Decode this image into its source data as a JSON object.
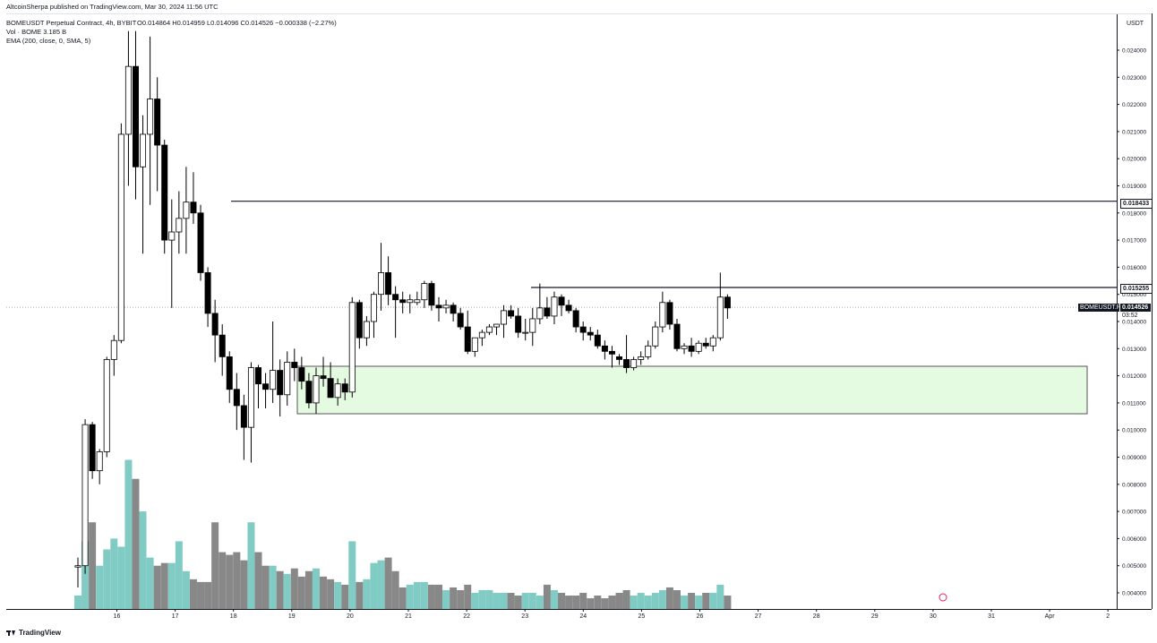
{
  "publish_info": "AltcoinSherpa published on TradingView.com, Mar 30, 2024 11:56 UTC",
  "header": {
    "symbol": "BOMEUSDT Perpetual Contract, 4h, BYBIT",
    "ohlc": "O0.014864  H0.014959  L0.014096  C0.014526  −0.000338 (−2.27%)",
    "volume": "Vol · BOME  3.185 B",
    "indicator": "EMA (200, close, 0, SMA, 5)"
  },
  "currency": "USDT",
  "price_labels": {
    "resistance_high": "0.018433",
    "resistance_mid": "0.015255",
    "symbol_tag": "BOMEUSDT.P",
    "last_price": "0.014526",
    "countdown": "03:52"
  },
  "brand": "TradingView",
  "colors": {
    "up_fill": "#ffffff",
    "down_fill": "#000000",
    "volume_up": "#80cbc4",
    "volume_down": "#888888",
    "support_zone": "#e4fbe2",
    "support_zone_border": "#2f2f2f"
  },
  "chart_data": {
    "type": "candlestick",
    "timeframe": "4h",
    "y_axis_ticks": [
      "0.024000",
      "0.023000",
      "0.022000",
      "0.021000",
      "0.020000",
      "0.019000",
      "0.018000",
      "0.017000",
      "0.016000",
      "0.015000",
      "0.014000",
      "0.013000",
      "0.012000",
      "0.011000",
      "0.010000",
      "0.009000",
      "0.008000",
      "0.007000",
      "0.006000",
      "0.005000",
      "0.004000"
    ],
    "ylim": [
      0.0034,
      0.0246
    ],
    "x_axis_labels": [
      "16",
      "17",
      "18",
      "19",
      "20",
      "21",
      "22",
      "23",
      "24",
      "25",
      "26",
      "27",
      "28",
      "29",
      "30",
      "31",
      "Apr",
      "2"
    ],
    "horizontal_lines": [
      0.018433,
      0.015255
    ],
    "support_zone": [
      0.0106,
      0.01235
    ],
    "last_price": 0.014526,
    "candles": [
      {
        "o": 0.00495,
        "h": 0.0053,
        "l": 0.0042,
        "c": 0.005
      },
      {
        "o": 0.005,
        "h": 0.0104,
        "l": 0.0047,
        "c": 0.0102
      },
      {
        "o": 0.0102,
        "h": 0.0103,
        "l": 0.0082,
        "c": 0.0085
      },
      {
        "o": 0.0085,
        "h": 0.0093,
        "l": 0.008,
        "c": 0.0092
      },
      {
        "o": 0.0092,
        "h": 0.0127,
        "l": 0.009,
        "c": 0.0126
      },
      {
        "o": 0.0126,
        "h": 0.0135,
        "l": 0.012,
        "c": 0.0133
      },
      {
        "o": 0.0133,
        "h": 0.0213,
        "l": 0.0132,
        "c": 0.0209
      },
      {
        "o": 0.0209,
        "h": 0.0247,
        "l": 0.019,
        "c": 0.0234
      },
      {
        "o": 0.0234,
        "h": 0.0247,
        "l": 0.0185,
        "c": 0.0197
      },
      {
        "o": 0.0197,
        "h": 0.0216,
        "l": 0.0165,
        "c": 0.0209
      },
      {
        "o": 0.0209,
        "h": 0.0245,
        "l": 0.0183,
        "c": 0.0222
      },
      {
        "o": 0.0222,
        "h": 0.023,
        "l": 0.0188,
        "c": 0.0205
      },
      {
        "o": 0.0205,
        "h": 0.0207,
        "l": 0.0165,
        "c": 0.017
      },
      {
        "o": 0.017,
        "h": 0.0185,
        "l": 0.0145,
        "c": 0.0173
      },
      {
        "o": 0.0173,
        "h": 0.0188,
        "l": 0.0165,
        "c": 0.0178
      },
      {
        "o": 0.0178,
        "h": 0.0197,
        "l": 0.0165,
        "c": 0.0184
      },
      {
        "o": 0.0184,
        "h": 0.0195,
        "l": 0.0176,
        "c": 0.018
      },
      {
        "o": 0.018,
        "h": 0.0183,
        "l": 0.0155,
        "c": 0.0158
      },
      {
        "o": 0.0158,
        "h": 0.016,
        "l": 0.0138,
        "c": 0.0143
      },
      {
        "o": 0.0143,
        "h": 0.0148,
        "l": 0.0125,
        "c": 0.0135
      },
      {
        "o": 0.0135,
        "h": 0.0139,
        "l": 0.012,
        "c": 0.0127
      },
      {
        "o": 0.0127,
        "h": 0.0129,
        "l": 0.011,
        "c": 0.0115
      },
      {
        "o": 0.0115,
        "h": 0.0121,
        "l": 0.01,
        "c": 0.0109
      },
      {
        "o": 0.0109,
        "h": 0.0113,
        "l": 0.0089,
        "c": 0.0101
      },
      {
        "o": 0.0101,
        "h": 0.0125,
        "l": 0.0088,
        "c": 0.0123
      },
      {
        "o": 0.0123,
        "h": 0.0124,
        "l": 0.0108,
        "c": 0.0117
      },
      {
        "o": 0.0117,
        "h": 0.0121,
        "l": 0.0108,
        "c": 0.0115
      },
      {
        "o": 0.0115,
        "h": 0.014,
        "l": 0.011,
        "c": 0.0122
      },
      {
        "o": 0.0122,
        "h": 0.0126,
        "l": 0.0105,
        "c": 0.0113
      },
      {
        "o": 0.0113,
        "h": 0.0129,
        "l": 0.0109,
        "c": 0.0125
      },
      {
        "o": 0.0125,
        "h": 0.013,
        "l": 0.0118,
        "c": 0.0123
      },
      {
        "o": 0.0123,
        "h": 0.0127,
        "l": 0.0115,
        "c": 0.0118
      },
      {
        "o": 0.0118,
        "h": 0.0121,
        "l": 0.0108,
        "c": 0.011
      },
      {
        "o": 0.011,
        "h": 0.0123,
        "l": 0.0106,
        "c": 0.012
      },
      {
        "o": 0.012,
        "h": 0.0127,
        "l": 0.0116,
        "c": 0.0119
      },
      {
        "o": 0.0119,
        "h": 0.0125,
        "l": 0.0113,
        "c": 0.0112
      },
      {
        "o": 0.0112,
        "h": 0.0119,
        "l": 0.0109,
        "c": 0.0117
      },
      {
        "o": 0.0117,
        "h": 0.0119,
        "l": 0.0111,
        "c": 0.0114
      },
      {
        "o": 0.0114,
        "h": 0.0149,
        "l": 0.0112,
        "c": 0.0147
      },
      {
        "o": 0.0147,
        "h": 0.0148,
        "l": 0.013,
        "c": 0.0134
      },
      {
        "o": 0.0134,
        "h": 0.0142,
        "l": 0.0131,
        "c": 0.014
      },
      {
        "o": 0.014,
        "h": 0.0151,
        "l": 0.0134,
        "c": 0.015
      },
      {
        "o": 0.015,
        "h": 0.0169,
        "l": 0.0144,
        "c": 0.0158
      },
      {
        "o": 0.0158,
        "h": 0.0164,
        "l": 0.0146,
        "c": 0.015
      },
      {
        "o": 0.015,
        "h": 0.0153,
        "l": 0.0134,
        "c": 0.0148
      },
      {
        "o": 0.0148,
        "h": 0.0151,
        "l": 0.0143,
        "c": 0.0147
      },
      {
        "o": 0.0147,
        "h": 0.015,
        "l": 0.0143,
        "c": 0.0148
      },
      {
        "o": 0.0147,
        "h": 0.0151,
        "l": 0.0146,
        "c": 0.0148
      },
      {
        "o": 0.0148,
        "h": 0.0155,
        "l": 0.0145,
        "c": 0.0154
      },
      {
        "o": 0.0154,
        "h": 0.0155,
        "l": 0.0144,
        "c": 0.0146
      },
      {
        "o": 0.0146,
        "h": 0.0149,
        "l": 0.014,
        "c": 0.0145
      },
      {
        "o": 0.0145,
        "h": 0.0148,
        "l": 0.0143,
        "c": 0.0146
      },
      {
        "o": 0.0146,
        "h": 0.0147,
        "l": 0.014,
        "c": 0.0143
      },
      {
        "o": 0.0143,
        "h": 0.0145,
        "l": 0.0137,
        "c": 0.0138
      },
      {
        "o": 0.0138,
        "h": 0.0144,
        "l": 0.0128,
        "c": 0.0129
      },
      {
        "o": 0.0129,
        "h": 0.0134,
        "l": 0.0127,
        "c": 0.0134
      },
      {
        "o": 0.0134,
        "h": 0.0137,
        "l": 0.0131,
        "c": 0.0136
      },
      {
        "o": 0.0136,
        "h": 0.0139,
        "l": 0.0135,
        "c": 0.0138
      },
      {
        "o": 0.0138,
        "h": 0.0139,
        "l": 0.0135,
        "c": 0.0139
      },
      {
        "o": 0.0139,
        "h": 0.0146,
        "l": 0.0134,
        "c": 0.0144
      },
      {
        "o": 0.0144,
        "h": 0.0146,
        "l": 0.0141,
        "c": 0.0142
      },
      {
        "o": 0.0142,
        "h": 0.0145,
        "l": 0.0134,
        "c": 0.0136
      },
      {
        "o": 0.0136,
        "h": 0.0141,
        "l": 0.0133,
        "c": 0.0136
      },
      {
        "o": 0.0136,
        "h": 0.0145,
        "l": 0.0131,
        "c": 0.0141
      },
      {
        "o": 0.0141,
        "h": 0.0154,
        "l": 0.0139,
        "c": 0.0145
      },
      {
        "o": 0.0145,
        "h": 0.0149,
        "l": 0.0141,
        "c": 0.0142
      },
      {
        "o": 0.0142,
        "h": 0.0151,
        "l": 0.0139,
        "c": 0.0149
      },
      {
        "o": 0.0149,
        "h": 0.015,
        "l": 0.0142,
        "c": 0.0146
      },
      {
        "o": 0.0146,
        "h": 0.0148,
        "l": 0.0143,
        "c": 0.0144
      },
      {
        "o": 0.0144,
        "h": 0.0145,
        "l": 0.0136,
        "c": 0.0138
      },
      {
        "o": 0.0138,
        "h": 0.014,
        "l": 0.0133,
        "c": 0.0136
      },
      {
        "o": 0.0136,
        "h": 0.0138,
        "l": 0.0133,
        "c": 0.0135
      },
      {
        "o": 0.0135,
        "h": 0.0137,
        "l": 0.013,
        "c": 0.0131
      },
      {
        "o": 0.0131,
        "h": 0.0133,
        "l": 0.0126,
        "c": 0.0129
      },
      {
        "o": 0.0129,
        "h": 0.0131,
        "l": 0.0123,
        "c": 0.0128
      },
      {
        "o": 0.0127,
        "h": 0.0128,
        "l": 0.0124,
        "c": 0.0126
      },
      {
        "o": 0.0126,
        "h": 0.0135,
        "l": 0.0121,
        "c": 0.0123
      },
      {
        "o": 0.0123,
        "h": 0.0127,
        "l": 0.0122,
        "c": 0.0126
      },
      {
        "o": 0.0126,
        "h": 0.0129,
        "l": 0.0124,
        "c": 0.0127
      },
      {
        "o": 0.0127,
        "h": 0.0133,
        "l": 0.0126,
        "c": 0.0131
      },
      {
        "o": 0.0131,
        "h": 0.014,
        "l": 0.013,
        "c": 0.0138
      },
      {
        "o": 0.0138,
        "h": 0.0151,
        "l": 0.0136,
        "c": 0.0147
      },
      {
        "o": 0.0147,
        "h": 0.0148,
        "l": 0.0137,
        "c": 0.0139
      },
      {
        "o": 0.0139,
        "h": 0.0141,
        "l": 0.0129,
        "c": 0.013
      },
      {
        "o": 0.013,
        "h": 0.0132,
        "l": 0.0128,
        "c": 0.0131
      },
      {
        "o": 0.0131,
        "h": 0.0134,
        "l": 0.0127,
        "c": 0.0129
      },
      {
        "o": 0.0129,
        "h": 0.0133,
        "l": 0.0128,
        "c": 0.0132
      },
      {
        "o": 0.0132,
        "h": 0.0134,
        "l": 0.013,
        "c": 0.0131
      },
      {
        "o": 0.0131,
        "h": 0.0135,
        "l": 0.0129,
        "c": 0.0134
      },
      {
        "o": 0.0134,
        "h": 0.0158,
        "l": 0.0133,
        "c": 0.0149
      },
      {
        "o": 0.0149,
        "h": 0.015,
        "l": 0.0141,
        "c": 0.0145
      }
    ],
    "volume_levels": [
      0.0039,
      0.0059,
      0.0066,
      0.005,
      0.0056,
      0.006,
      0.0057,
      0.0089,
      0.0082,
      0.007,
      0.0053,
      0.005,
      0.0051,
      0.0051,
      0.0059,
      0.0048,
      0.0045,
      0.0044,
      0.0044,
      0.0066,
      0.0055,
      0.0054,
      0.0055,
      0.0052,
      0.0066,
      0.0055,
      0.005,
      0.005,
      0.0048,
      0.0047,
      0.0049,
      0.0046,
      0.0048,
      0.0049,
      0.0046,
      0.0045,
      0.0044,
      0.0043,
      0.0059,
      0.0044,
      0.0045,
      0.0051,
      0.0052,
      0.0053,
      0.0048,
      0.0042,
      0.0043,
      0.0044,
      0.0044,
      0.0043,
      0.0043,
      0.0041,
      0.0042,
      0.0041,
      0.0043,
      0.004,
      0.0041,
      0.0041,
      0.004,
      0.004,
      0.004,
      0.0039,
      0.004,
      0.004,
      0.0039,
      0.0043,
      0.0041,
      0.004,
      0.0039,
      0.0039,
      0.004,
      0.0038,
      0.0039,
      0.0038,
      0.0039,
      0.004,
      0.0041,
      0.0039,
      0.004,
      0.0039,
      0.004,
      0.0041,
      0.0042,
      0.0041,
      0.0039,
      0.004,
      0.0039,
      0.004,
      0.004,
      0.0043,
      0.0039
    ]
  }
}
